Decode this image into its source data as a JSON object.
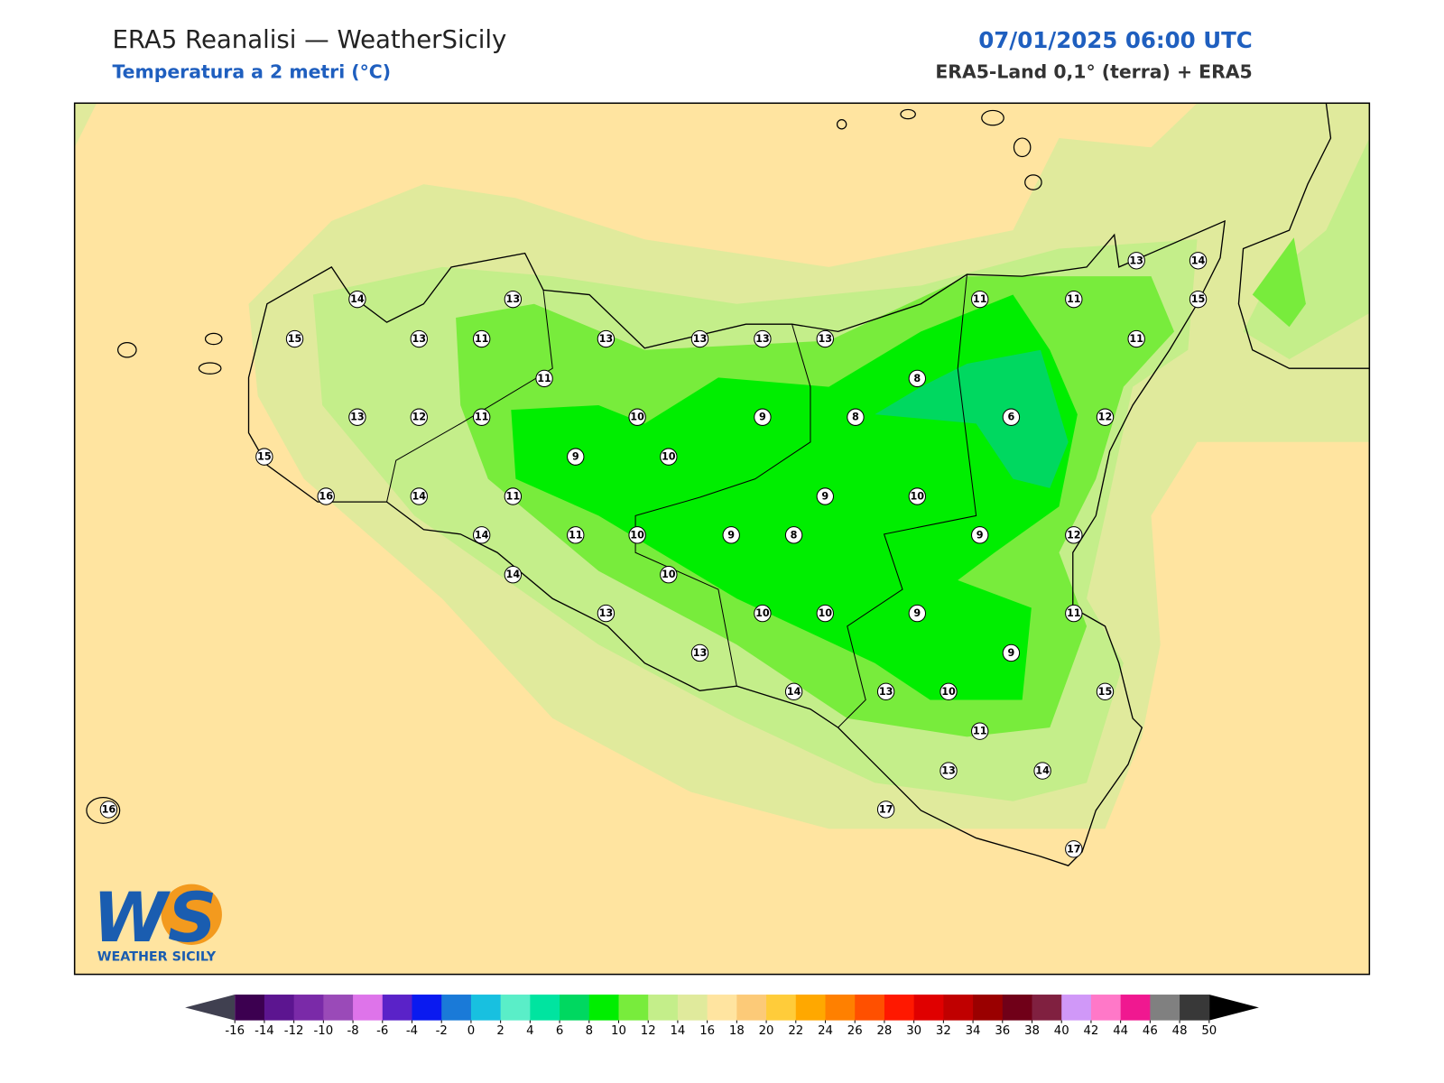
{
  "header": {
    "title": "ERA5 Reanalisi — WeatherSicily",
    "subtitle": "Temperatura a 2 metri (°C)",
    "datetime": "07/01/2025 06:00 UTC",
    "source": "ERA5-Land 0,1° (terra) + ERA5"
  },
  "map": {
    "station_values": [
      14,
      13,
      15,
      13,
      11,
      13,
      13,
      13,
      13,
      11,
      11,
      13,
      14,
      15,
      11,
      11,
      8,
      13,
      12,
      11,
      10,
      9,
      8,
      6,
      12,
      15,
      9,
      10,
      16,
      14,
      11,
      9,
      10,
      14,
      11,
      10,
      9,
      8,
      9,
      12,
      14,
      10,
      13,
      10,
      10,
      9,
      11,
      9,
      13,
      14,
      13,
      10,
      15,
      11,
      13,
      14,
      16,
      17,
      17
    ]
  },
  "logo": {
    "mark": "WS",
    "text": "WEATHER SICILY"
  },
  "colorbar": {
    "ticks": [
      -16,
      -14,
      -12,
      -10,
      -8,
      -6,
      -4,
      -2,
      0,
      2,
      4,
      6,
      8,
      10,
      12,
      14,
      16,
      18,
      20,
      22,
      24,
      26,
      28,
      30,
      32,
      34,
      36,
      38,
      40,
      42,
      44,
      46,
      48,
      50
    ],
    "colors": [
      "#3c0050",
      "#5c1590",
      "#7a2aa8",
      "#9a4ab8",
      "#de74ea",
      "#5a22c8",
      "#0a1af0",
      "#1a7ad8",
      "#18c0e0",
      "#5aeec8",
      "#00e4a0",
      "#00d860",
      "#00ee00",
      "#78ec3c",
      "#c4ee8a",
      "#e0ea9c",
      "#ffe4a0",
      "#fcca78",
      "#ffcc3a",
      "#ffa800",
      "#ff8000",
      "#ff5000",
      "#ff1800",
      "#e00000",
      "#c00000",
      "#9a0000",
      "#700018",
      "#802040",
      "#d098f8",
      "#ff78c8",
      "#f01890",
      "#808080",
      "#383838"
    ],
    "under_color": "#404050",
    "over_color": "#000000"
  }
}
